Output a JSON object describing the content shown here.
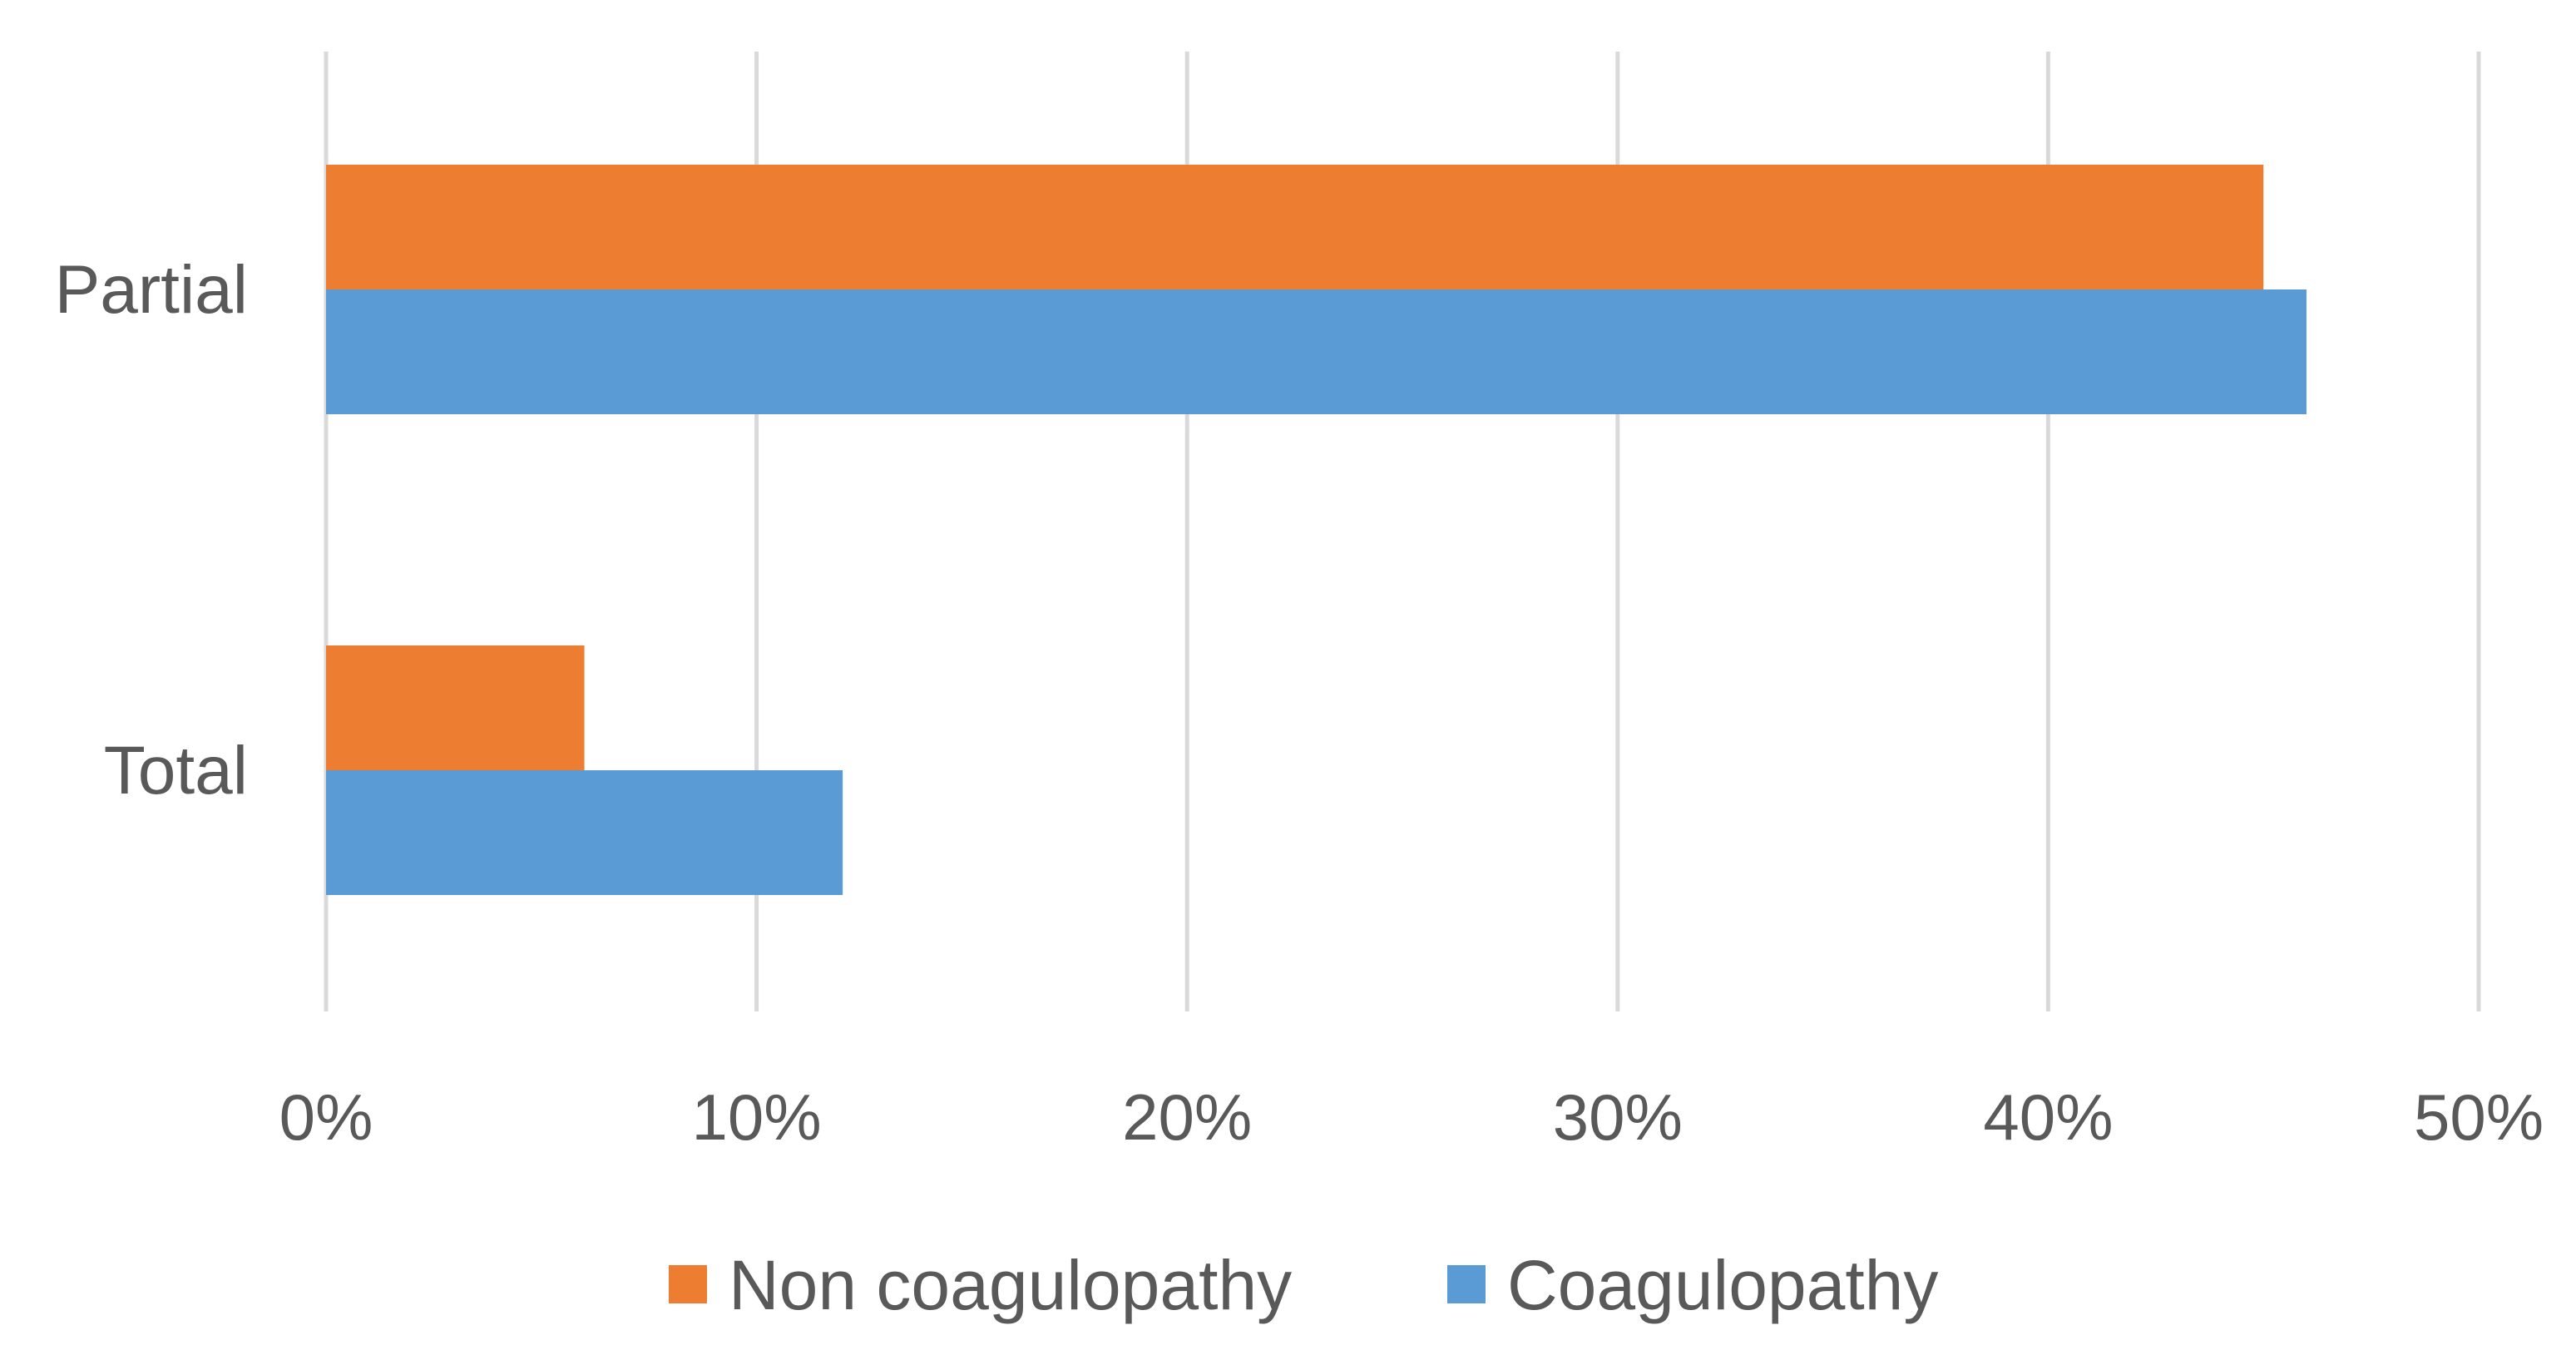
{
  "chart_data": {
    "type": "bar",
    "orientation": "horizontal",
    "categories": [
      "Partial",
      "Total"
    ],
    "series": [
      {
        "name": "Non coagulopathy",
        "values": [
          45,
          6
        ],
        "color": "#ED7D31"
      },
      {
        "name": "Coagulopathy",
        "values": [
          46,
          12
        ],
        "color": "#5B9BD5"
      }
    ],
    "x_ticks": [
      "0%",
      "10%",
      "20%",
      "30%",
      "40%",
      "50%"
    ],
    "xlim": [
      0,
      50
    ],
    "x_unit": "%",
    "grid": "vertical",
    "legend_position": "bottom"
  }
}
